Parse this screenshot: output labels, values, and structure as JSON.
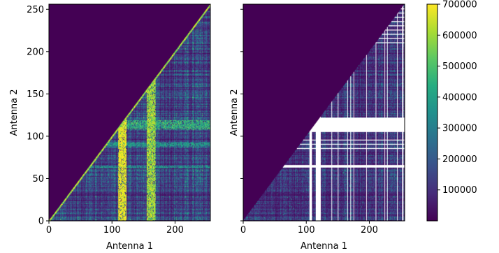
{
  "chart_data": [
    {
      "type": "heatmap",
      "panel": "raw",
      "xlabel": "Antenna 1",
      "ylabel": "Antenna 2",
      "xlim": [
        0,
        256
      ],
      "ylim": [
        0,
        256
      ],
      "xticks": [
        0,
        100,
        200
      ],
      "yticks": [
        0,
        50,
        100,
        150,
        200,
        250
      ],
      "masked_region": "none",
      "background_value": 0,
      "diagonal_band_value": 700000,
      "typical_value": 150000,
      "highlight_columns": [
        {
          "from": 110,
          "to": 122,
          "value": 700000
        },
        {
          "from": 155,
          "to": 168,
          "value": 600000
        }
      ],
      "highlight_rows": [
        {
          "from": 108,
          "to": 118,
          "value": 500000
        },
        {
          "from": 88,
          "to": 92,
          "value": 420000
        },
        {
          "from": 62,
          "to": 64,
          "value": 400000
        }
      ]
    },
    {
      "type": "heatmap",
      "panel": "flagged",
      "xlabel": "Antenna 1",
      "ylabel": "Antenna 2",
      "xlim": [
        0,
        256
      ],
      "ylim": [
        0,
        256
      ],
      "xticks": [
        0,
        100,
        200
      ],
      "yticks": [],
      "shared_y_ticks": true,
      "background_value": 0,
      "typical_value": 120000,
      "flagged_columns": [
        105,
        106,
        107,
        108,
        115,
        116,
        117,
        118,
        119,
        120,
        121,
        122,
        140,
        150,
        165,
        170,
        175,
        195,
        210,
        224,
        228,
        244,
        252,
        253
      ],
      "flagged_rows": [
        105,
        106,
        107,
        108,
        109,
        110,
        111,
        112,
        113,
        114,
        115,
        116,
        117,
        118,
        119,
        120,
        121,
        85,
        90,
        95,
        63,
        64,
        65,
        210,
        215,
        220,
        225,
        230,
        235,
        240,
        245,
        250
      ]
    }
  ],
  "colorbar": {
    "min": 0,
    "max": 700000,
    "ticks": [
      100000,
      200000,
      300000,
      400000,
      500000,
      600000,
      700000
    ],
    "colormap": "viridis"
  }
}
